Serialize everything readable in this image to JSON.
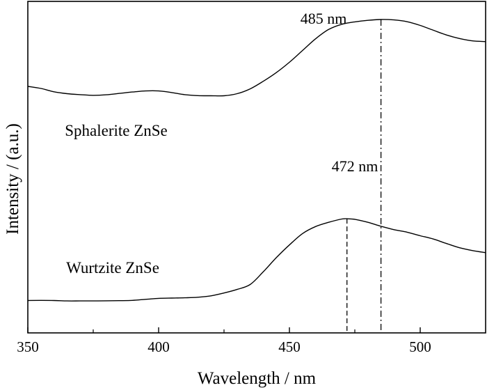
{
  "chart_data": {
    "type": "line",
    "title": "",
    "xlabel": "Wavelength / nm",
    "ylabel": "Intensity / (a.u.)",
    "xlim": [
      350,
      525
    ],
    "ylim": [
      0,
      1
    ],
    "y_ticks_shown": false,
    "grid": false,
    "x_ticks": [
      350,
      400,
      450,
      500
    ],
    "x_tick_labels": [
      "350",
      "400",
      "450",
      "500"
    ],
    "series": [
      {
        "name": "Sphalerite ZnSe",
        "color": "#000000",
        "peak_label": "485 nm",
        "peak_x": 485,
        "peak_line_style": "dash-dot",
        "x": [
          350,
          355,
          360,
          365,
          370,
          375,
          380,
          385,
          390,
          395,
          400,
          405,
          410,
          415,
          420,
          425,
          430,
          435,
          440,
          445,
          450,
          455,
          460,
          465,
          470,
          475,
          480,
          485,
          490,
          495,
          500,
          505,
          510,
          515,
          520,
          525
        ],
        "y": [
          0.515,
          0.5,
          0.476,
          0.462,
          0.455,
          0.45,
          0.454,
          0.464,
          0.474,
          0.482,
          0.482,
          0.47,
          0.455,
          0.448,
          0.447,
          0.447,
          0.462,
          0.497,
          0.552,
          0.615,
          0.69,
          0.775,
          0.86,
          0.928,
          0.965,
          0.983,
          0.994,
          1.0,
          0.997,
          0.984,
          0.957,
          0.922,
          0.888,
          0.862,
          0.845,
          0.84
        ]
      },
      {
        "name": "Wurtzite ZnSe",
        "color": "#000000",
        "peak_label": "472 nm",
        "peak_x": 472,
        "peak_line_style": "dashed",
        "x": [
          350,
          355,
          360,
          365,
          370,
          375,
          380,
          385,
          390,
          395,
          400,
          405,
          410,
          415,
          420,
          425,
          430,
          435,
          440,
          445,
          450,
          455,
          460,
          465,
          470,
          472,
          475,
          480,
          485,
          490,
          495,
          500,
          505,
          510,
          515,
          520,
          525
        ],
        "y": [
          0.047,
          0.048,
          0.047,
          0.044,
          0.044,
          0.044,
          0.045,
          0.046,
          0.048,
          0.055,
          0.062,
          0.064,
          0.066,
          0.07,
          0.08,
          0.1,
          0.125,
          0.16,
          0.25,
          0.35,
          0.44,
          0.52,
          0.57,
          0.6,
          0.623,
          0.625,
          0.621,
          0.6,
          0.572,
          0.548,
          0.53,
          0.505,
          0.482,
          0.45,
          0.42,
          0.4,
          0.385
        ]
      }
    ]
  }
}
